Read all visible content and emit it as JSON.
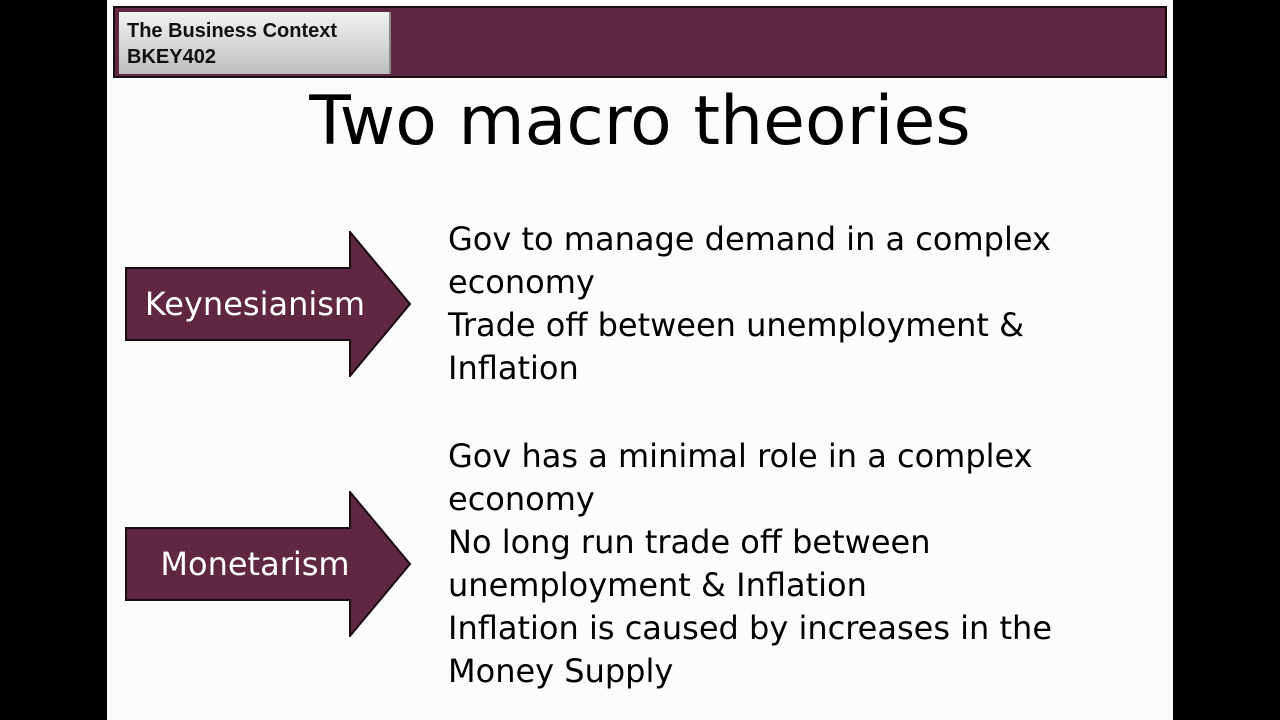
{
  "header": {
    "course_title": "The Business Context",
    "course_code": "BKEY402"
  },
  "slide": {
    "title": "Two macro theories"
  },
  "colors": {
    "accent": "#5f2742",
    "arrow_fill": "#5f2742",
    "background": "#fdfcfd"
  },
  "theories": [
    {
      "name": "Keynesianism",
      "lines": [
        "Gov to manage demand in a complex",
        "economy",
        "Trade off between unemployment &",
        "Inflation"
      ]
    },
    {
      "name": "Monetarism",
      "lines": [
        "Gov has a minimal role in a complex",
        "economy",
        "No long run trade off between",
        "unemployment & Inflation",
        "Inflation is caused by increases in the",
        "Money Supply"
      ]
    }
  ]
}
